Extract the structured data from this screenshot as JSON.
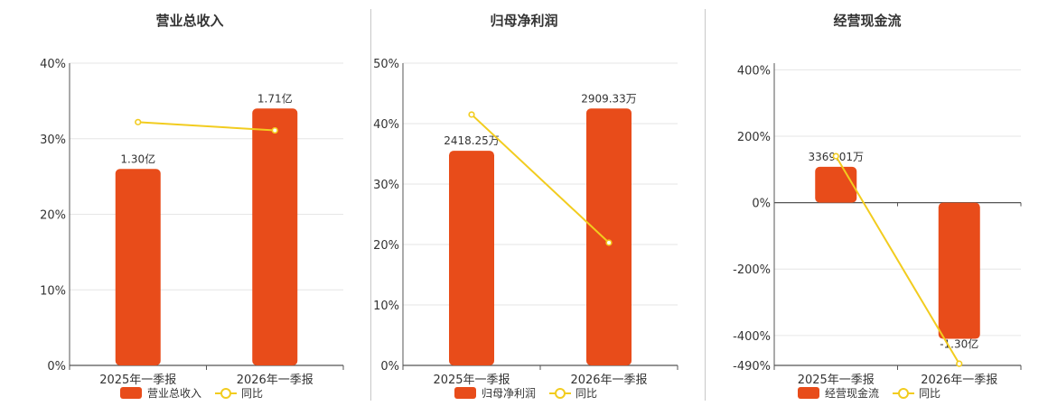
{
  "colors": {
    "bar": "#e84c1a",
    "line": "#f2cc1f",
    "grid": "#e6e6e6",
    "axis": "#555555"
  },
  "charts": [
    {
      "type": "bar",
      "title": "营业总收入",
      "categories": [
        "2025年一季报",
        "2026年一季报"
      ],
      "ticks": [
        "0%",
        "10%",
        "20%",
        "30%",
        "40%"
      ],
      "legend": {
        "bar": "营业总收入",
        "line": "同比"
      },
      "bars": [
        {
          "label": "1.30亿",
          "value": 26.0
        },
        {
          "label": "1.71亿",
          "value": 34.0
        }
      ],
      "line": [
        32.2,
        31.1
      ],
      "ylim": [
        0,
        40
      ]
    },
    {
      "type": "bar",
      "title": "归母净利润",
      "categories": [
        "2025年一季报",
        "2026年一季报"
      ],
      "ticks": [
        "0%",
        "10%",
        "20%",
        "30%",
        "40%",
        "50%"
      ],
      "legend": {
        "bar": "归母净利润",
        "line": "同比"
      },
      "bars": [
        {
          "label": "2418.25万",
          "value": 35.5
        },
        {
          "label": "2909.33万",
          "value": 42.5
        }
      ],
      "line": [
        41.5,
        20.3
      ],
      "ylim": [
        0,
        50
      ]
    },
    {
      "type": "bar",
      "title": "经营现金流",
      "categories": [
        "2025年一季报",
        "2026年一季报"
      ],
      "ticks": [
        "-490%",
        "-400%",
        "-200%",
        "0%",
        "200%",
        "400%"
      ],
      "legend": {
        "bar": "经营现金流",
        "line": "同比"
      },
      "bars": [
        {
          "label": "3369.01万",
          "value": 108
        },
        {
          "label": "-1.30亿",
          "value": -410
        }
      ],
      "line": [
        140,
        -485
      ],
      "ylim": [
        -490,
        420
      ]
    }
  ]
}
